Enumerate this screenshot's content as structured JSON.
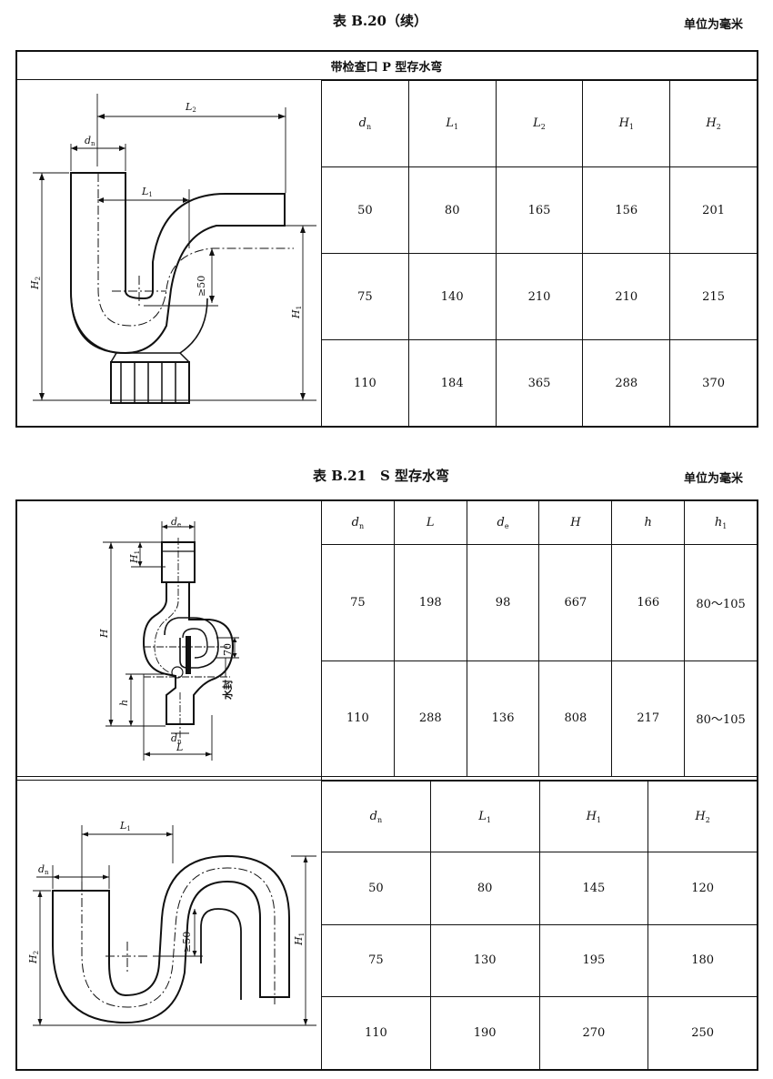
{
  "t1": {
    "caption": "表 B.20（续）",
    "unit": "单位为毫米",
    "title": "带检查口 P 型存水弯",
    "headers": [
      {
        "sym": "d",
        "sub": "n"
      },
      {
        "sym": "L",
        "sub": "1"
      },
      {
        "sym": "L",
        "sub": "2"
      },
      {
        "sym": "H",
        "sub": "1"
      },
      {
        "sym": "H",
        "sub": "2"
      }
    ],
    "rows": [
      [
        "50",
        "80",
        "165",
        "156",
        "201"
      ],
      [
        "75",
        "140",
        "210",
        "210",
        "215"
      ],
      [
        "110",
        "184",
        "365",
        "288",
        "370"
      ]
    ],
    "fig": {
      "L2": "L",
      "L2s": "2",
      "dn": "d",
      "dns": "n",
      "L1": "L",
      "L1s": "1",
      "ge50": "≥50",
      "H2": "H",
      "H2s": "2",
      "H1": "H",
      "H1s": "1"
    }
  },
  "t2": {
    "caption": "表 B.21　S 型存水弯",
    "unit": "单位为毫米",
    "headers": [
      {
        "sym": "d",
        "sub": "n"
      },
      {
        "sym": "L",
        "sub": ""
      },
      {
        "sym": "d",
        "sub": "e"
      },
      {
        "sym": "H",
        "sub": ""
      },
      {
        "sym": "h",
        "sub": ""
      },
      {
        "sym": "h",
        "sub": "1"
      }
    ],
    "rows": [
      [
        "75",
        "198",
        "98",
        "667",
        "166",
        "80～105"
      ],
      [
        "110",
        "288",
        "136",
        "808",
        "217",
        "80～105"
      ]
    ],
    "fig": {
      "de": "d",
      "des": "e",
      "H1": "H",
      "H1s": "1",
      "H": "H",
      "h": "h",
      "dn": "d",
      "dns": "n",
      "L": "L",
      "v70": "70",
      "seal": "水封"
    }
  },
  "t3": {
    "headers": [
      {
        "sym": "d",
        "sub": "n"
      },
      {
        "sym": "L",
        "sub": "1"
      },
      {
        "sym": "H",
        "sub": "1"
      },
      {
        "sym": "H",
        "sub": "2"
      }
    ],
    "rows": [
      [
        "50",
        "80",
        "145",
        "120"
      ],
      [
        "75",
        "130",
        "195",
        "180"
      ],
      [
        "110",
        "190",
        "270",
        "250"
      ]
    ],
    "fig": {
      "L1": "L",
      "L1s": "1",
      "dn": "d",
      "dns": "n",
      "ge50": "≥50",
      "H2": "H",
      "H2s": "2",
      "H1": "H",
      "H1s": "1"
    }
  }
}
